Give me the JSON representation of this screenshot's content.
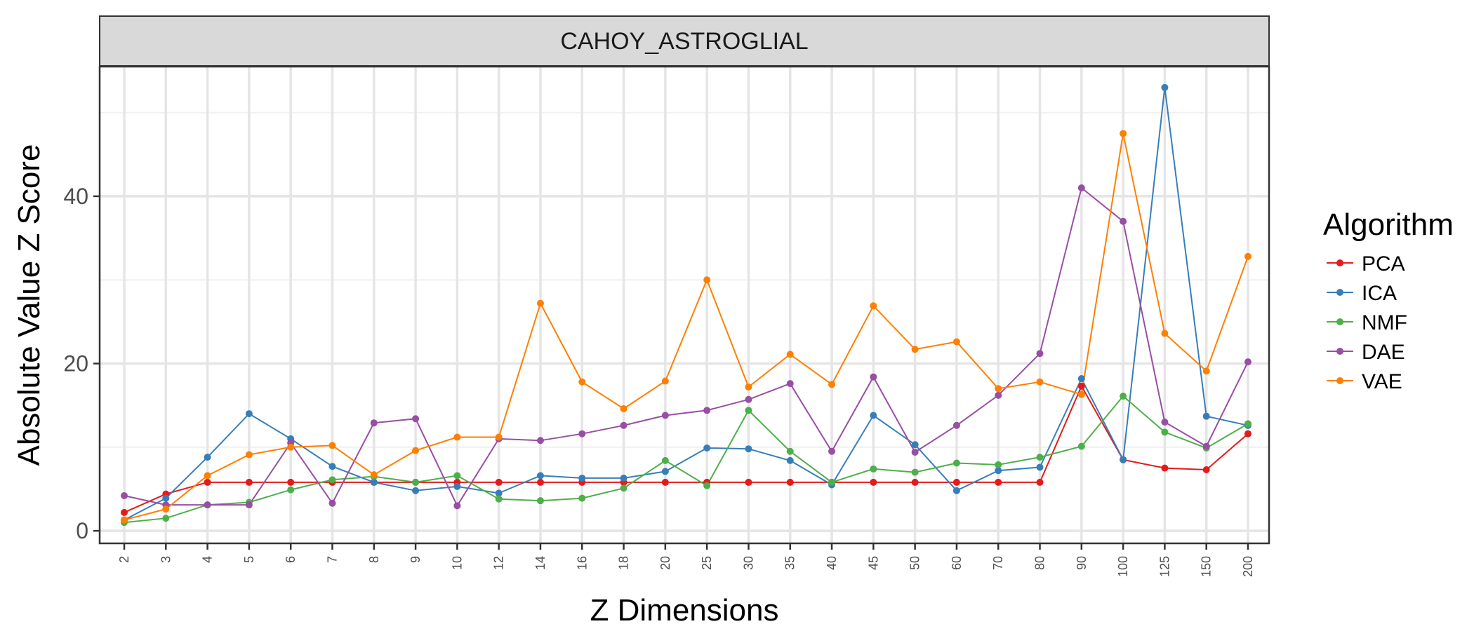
{
  "chart_data": {
    "type": "line",
    "facet_title": "CAHOY_ASTROGLIAL",
    "xlabel": "Z Dimensions",
    "ylabel": "Absolute Value Z Score",
    "x": [
      "2",
      "3",
      "4",
      "5",
      "6",
      "7",
      "8",
      "9",
      "10",
      "12",
      "14",
      "16",
      "18",
      "20",
      "25",
      "30",
      "35",
      "40",
      "45",
      "50",
      "60",
      "70",
      "80",
      "90",
      "100",
      "125",
      "150",
      "200"
    ],
    "y_ticks": [
      0,
      20,
      40
    ],
    "ylim": [
      -1.5,
      55.5
    ],
    "grid": true,
    "legend": {
      "title": "Algorithm",
      "position": "right"
    },
    "series": [
      {
        "name": "PCA",
        "color": "#E41A1C",
        "values": [
          2.2,
          4.4,
          5.8,
          5.8,
          5.8,
          5.8,
          5.8,
          5.8,
          5.8,
          5.8,
          5.8,
          5.8,
          5.8,
          5.8,
          5.8,
          5.8,
          5.8,
          5.8,
          5.8,
          5.8,
          5.8,
          5.8,
          5.8,
          17.3,
          8.5,
          7.5,
          7.3,
          11.6
        ]
      },
      {
        "name": "ICA",
        "color": "#377EB8",
        "values": [
          1.3,
          3.9,
          8.8,
          14.0,
          11.0,
          7.7,
          5.8,
          4.8,
          5.3,
          4.5,
          6.6,
          6.3,
          6.3,
          7.1,
          9.9,
          9.8,
          8.4,
          5.5,
          13.8,
          10.3,
          4.8,
          7.2,
          7.6,
          18.2,
          8.5,
          53.0,
          13.7,
          12.6
        ]
      },
      {
        "name": "NMF",
        "color": "#4DAF4A",
        "values": [
          1.0,
          1.5,
          3.1,
          3.4,
          4.9,
          6.1,
          6.5,
          5.8,
          6.6,
          3.8,
          3.6,
          3.9,
          5.1,
          8.4,
          5.4,
          14.4,
          9.5,
          5.8,
          7.4,
          7.0,
          8.1,
          7.9,
          8.8,
          10.1,
          16.1,
          11.8,
          9.9,
          12.8
        ]
      },
      {
        "name": "DAE",
        "color": "#984EA3",
        "values": [
          4.2,
          3.1,
          3.1,
          3.1,
          10.5,
          3.3,
          12.9,
          13.4,
          3.0,
          11.0,
          10.8,
          11.6,
          12.6,
          13.8,
          14.4,
          15.7,
          17.6,
          9.5,
          18.4,
          9.4,
          12.6,
          16.2,
          21.2,
          41.0,
          37.0,
          13.0,
          10.1,
          20.2
        ]
      },
      {
        "name": "VAE",
        "color": "#FF7F00",
        "values": [
          1.3,
          2.6,
          6.6,
          9.1,
          10.0,
          10.2,
          6.7,
          9.6,
          11.2,
          11.2,
          27.2,
          17.8,
          14.6,
          17.9,
          30.0,
          17.2,
          21.1,
          17.5,
          26.9,
          21.7,
          22.6,
          17.0,
          17.8,
          16.3,
          47.5,
          23.6,
          19.1,
          32.8
        ]
      }
    ]
  }
}
